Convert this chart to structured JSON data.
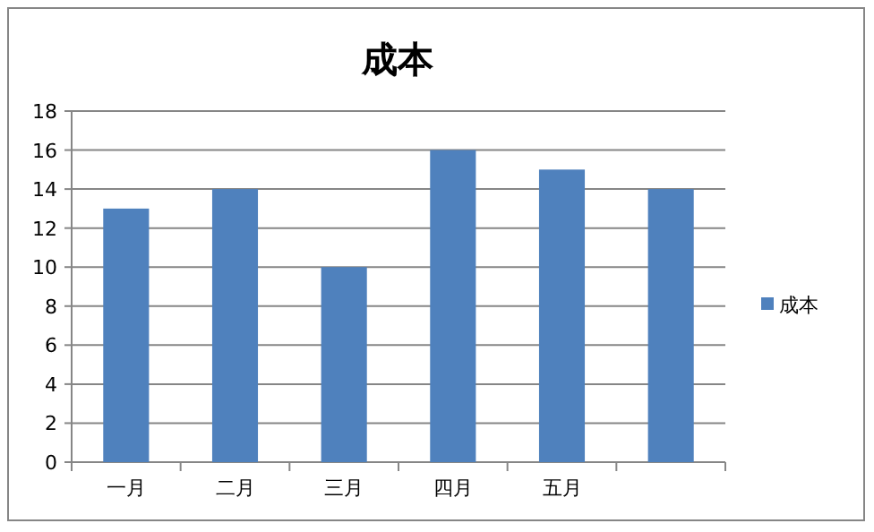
{
  "chart_data": {
    "type": "bar",
    "title": "成本",
    "categories": [
      "一月",
      "二月",
      "三月",
      "四月",
      "五月",
      null
    ],
    "series": [
      {
        "name": "成本",
        "color": "#4f81bd",
        "values": [
          13,
          14,
          10,
          16,
          15,
          14
        ]
      }
    ],
    "ylim": [
      0,
      18
    ],
    "yticks": [
      0,
      2,
      4,
      6,
      8,
      10,
      12,
      14,
      16,
      18
    ],
    "grid": "y",
    "legend": "right"
  }
}
